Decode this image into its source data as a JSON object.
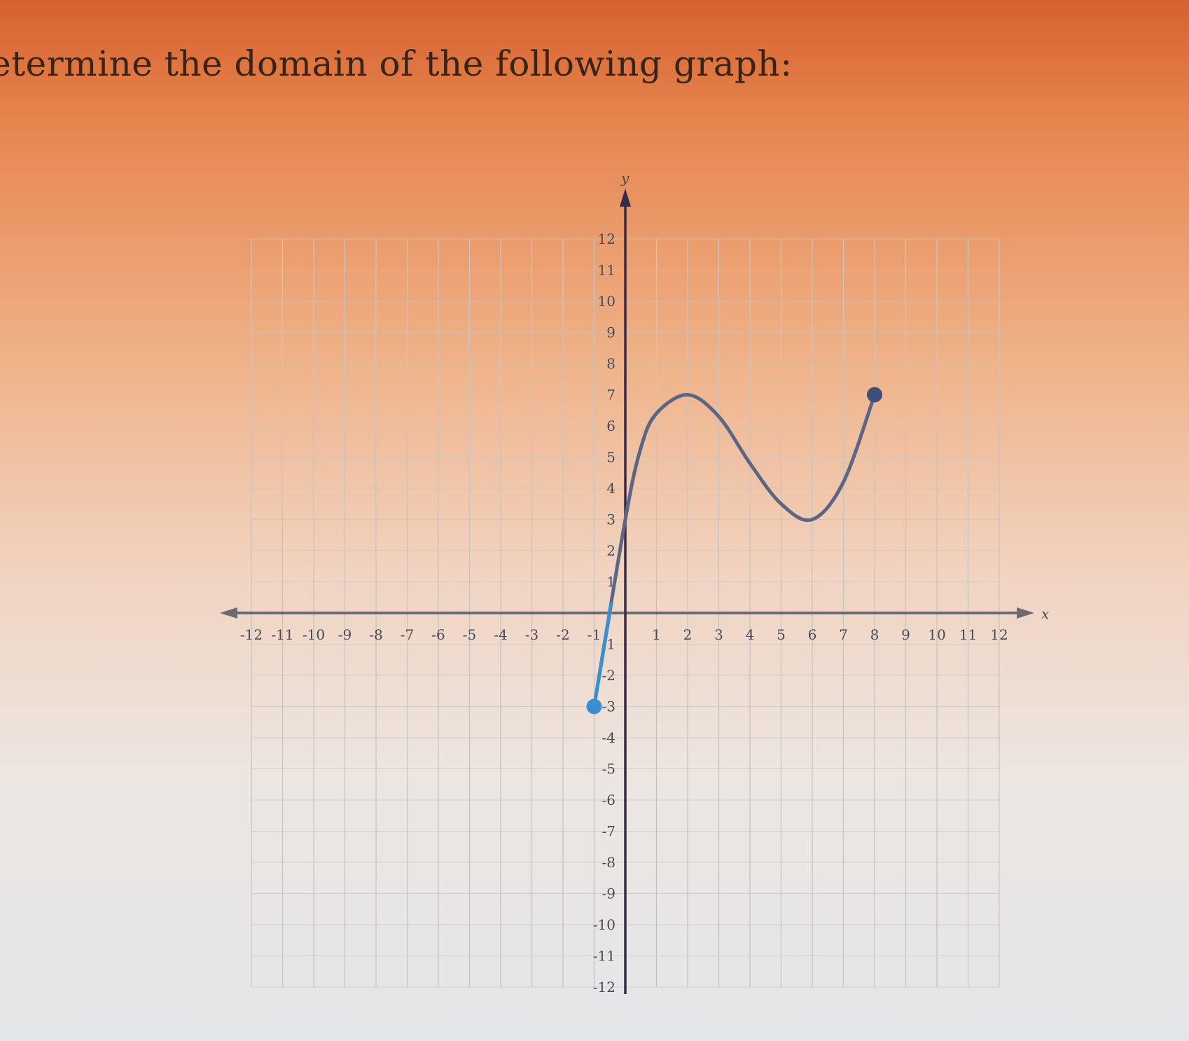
{
  "question": "etermine the domain of the following graph:",
  "chart_data": {
    "type": "line",
    "title": "",
    "xlabel": "x",
    "ylabel": "y",
    "xlim": [
      -12,
      12
    ],
    "ylim": [
      -12,
      12
    ],
    "grid": true,
    "x_ticks": [
      -12,
      -11,
      -10,
      -9,
      -8,
      -7,
      -6,
      -5,
      -4,
      -3,
      -2,
      -1,
      1,
      2,
      3,
      4,
      5,
      6,
      7,
      8,
      9,
      10,
      11,
      12
    ],
    "y_ticks": [
      12,
      11,
      10,
      9,
      8,
      7,
      6,
      5,
      4,
      3,
      2,
      1,
      -1,
      -2,
      -3,
      -4,
      -5,
      -6,
      -7,
      -8,
      -9,
      -10,
      -11,
      -12
    ],
    "series": [
      {
        "points": [
          [
            -1,
            -3
          ],
          [
            0,
            3
          ],
          [
            0.5,
            5.3
          ],
          [
            1,
            6.4
          ],
          [
            2,
            7
          ],
          [
            3,
            6.3
          ],
          [
            4,
            4.8
          ],
          [
            5,
            3.5
          ],
          [
            6,
            3
          ],
          [
            7,
            4.2
          ],
          [
            8,
            7
          ]
        ],
        "start_point": {
          "x": -1,
          "y": -3,
          "closed": true
        },
        "end_point": {
          "x": 8,
          "y": 7,
          "closed": true
        }
      }
    ],
    "colors": {
      "curve": "#5b6584",
      "start_dot": "#3a8fd0",
      "end_dot": "#3f4f78",
      "axis_x": "#6e6a72",
      "axis_y": "#3a2a4a",
      "grid": "#c9c3c2"
    }
  }
}
